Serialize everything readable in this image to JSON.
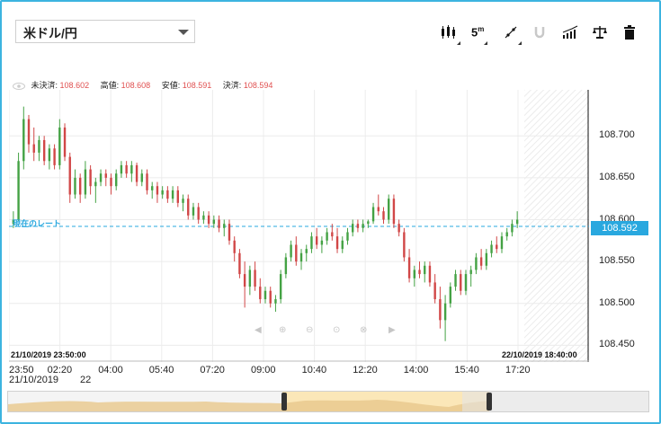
{
  "toolbar": {
    "pair": "米ドル/円",
    "interval": "5",
    "interval_unit": "m"
  },
  "quote": {
    "close_label": "未決済:",
    "close_value": "108.602",
    "high_label": "高値:",
    "high_value": "108.608",
    "low_label": "安値:",
    "low_value": "108.591",
    "last_label": "決済:",
    "last_value": "108.594"
  },
  "current_rate_label": "現在のレート",
  "current_price": "108.592",
  "start_datetime": "21/10/2019 23:50:00",
  "end_datetime": "22/10/2019 18:40:00",
  "y_axis_labels": [
    "108.700",
    "108.650",
    "108.600",
    "108.550",
    "108.500",
    "108.450"
  ],
  "x_axis_labels": [
    "23:50",
    "02:20",
    "04:00",
    "05:40",
    "07:20",
    "09:00",
    "10:40",
    "12:20",
    "14:00",
    "15:40",
    "17:20"
  ],
  "x_axis_dates": [
    "21/10/2019",
    "22"
  ],
  "colors": {
    "up": "#44a244",
    "down": "#d14747",
    "accent": "#29a8df"
  },
  "chart_data": {
    "type": "candlestick",
    "ylim": [
      108.43,
      108.755
    ],
    "candles": [
      [
        108.595,
        108.61,
        108.59,
        108.6
      ],
      [
        108.6,
        108.68,
        108.598,
        108.67
      ],
      [
        108.67,
        108.735,
        108.66,
        108.72
      ],
      [
        108.72,
        108.725,
        108.68,
        108.69
      ],
      [
        108.69,
        108.71,
        108.67,
        108.68
      ],
      [
        108.68,
        108.7,
        108.67,
        108.695
      ],
      [
        108.695,
        108.7,
        108.665,
        108.67
      ],
      [
        108.67,
        108.69,
        108.66,
        108.685
      ],
      [
        108.685,
        108.69,
        108.66,
        108.665
      ],
      [
        108.665,
        108.72,
        108.66,
        108.71
      ],
      [
        108.71,
        108.715,
        108.67,
        108.675
      ],
      [
        108.675,
        108.68,
        108.62,
        108.63
      ],
      [
        108.63,
        108.66,
        108.625,
        108.65
      ],
      [
        108.65,
        108.655,
        108.62,
        108.63
      ],
      [
        108.63,
        108.67,
        108.625,
        108.66
      ],
      [
        108.66,
        108.665,
        108.63,
        108.64
      ],
      [
        108.64,
        108.65,
        108.62,
        108.645
      ],
      [
        108.645,
        108.66,
        108.64,
        108.655
      ],
      [
        108.655,
        108.66,
        108.64,
        108.65
      ],
      [
        108.65,
        108.655,
        108.63,
        108.64
      ],
      [
        108.64,
        108.66,
        108.635,
        108.655
      ],
      [
        108.655,
        108.67,
        108.65,
        108.665
      ],
      [
        108.665,
        108.67,
        108.65,
        108.655
      ],
      [
        108.655,
        108.67,
        108.645,
        108.665
      ],
      [
        108.665,
        108.668,
        108.64,
        108.645
      ],
      [
        108.645,
        108.66,
        108.64,
        108.655
      ],
      [
        108.655,
        108.66,
        108.63,
        108.635
      ],
      [
        108.635,
        108.645,
        108.625,
        108.64
      ],
      [
        108.64,
        108.645,
        108.62,
        108.63
      ],
      [
        108.63,
        108.64,
        108.625,
        108.635
      ],
      [
        108.635,
        108.64,
        108.62,
        108.625
      ],
      [
        108.625,
        108.64,
        108.62,
        108.635
      ],
      [
        108.635,
        108.64,
        108.615,
        108.62
      ],
      [
        108.62,
        108.63,
        108.61,
        108.625
      ],
      [
        108.625,
        108.63,
        108.6,
        108.605
      ],
      [
        108.605,
        108.62,
        108.6,
        108.615
      ],
      [
        108.615,
        108.62,
        108.595,
        108.6
      ],
      [
        108.6,
        108.61,
        108.595,
        108.605
      ],
      [
        108.605,
        108.61,
        108.59,
        108.595
      ],
      [
        108.595,
        108.605,
        108.59,
        108.6
      ],
      [
        108.6,
        108.605,
        108.585,
        108.59
      ],
      [
        108.59,
        108.6,
        108.58,
        108.595
      ],
      [
        108.595,
        108.6,
        108.57,
        108.575
      ],
      [
        108.575,
        108.58,
        108.55,
        108.56
      ],
      [
        108.56,
        108.565,
        108.53,
        108.535
      ],
      [
        108.535,
        108.55,
        108.495,
        108.52
      ],
      [
        108.52,
        108.545,
        108.51,
        108.54
      ],
      [
        108.54,
        108.55,
        108.515,
        108.52
      ],
      [
        108.52,
        108.53,
        108.5,
        108.505
      ],
      [
        108.505,
        108.52,
        108.5,
        108.515
      ],
      [
        108.515,
        108.52,
        108.495,
        108.5
      ],
      [
        108.5,
        108.51,
        108.49,
        108.505
      ],
      [
        108.505,
        108.54,
        108.5,
        108.535
      ],
      [
        108.535,
        108.56,
        108.53,
        108.555
      ],
      [
        108.555,
        108.575,
        108.55,
        108.57
      ],
      [
        108.57,
        108.58,
        108.545,
        108.55
      ],
      [
        108.55,
        108.565,
        108.54,
        108.56
      ],
      [
        108.56,
        108.57,
        108.55,
        108.565
      ],
      [
        108.565,
        108.585,
        108.56,
        108.58
      ],
      [
        108.58,
        108.59,
        108.565,
        108.57
      ],
      [
        108.57,
        108.58,
        108.56,
        108.575
      ],
      [
        108.575,
        108.59,
        108.57,
        108.585
      ],
      [
        108.585,
        108.595,
        108.575,
        108.58
      ],
      [
        108.58,
        108.59,
        108.56,
        108.565
      ],
      [
        108.565,
        108.58,
        108.56,
        108.575
      ],
      [
        108.575,
        108.59,
        108.57,
        108.585
      ],
      [
        108.585,
        108.6,
        108.58,
        108.595
      ],
      [
        108.595,
        108.6,
        108.585,
        108.59
      ],
      [
        108.59,
        108.6,
        108.585,
        108.595
      ],
      [
        108.595,
        108.6,
        108.59,
        108.598
      ],
      [
        108.598,
        108.62,
        108.595,
        108.615
      ],
      [
        108.615,
        108.63,
        108.605,
        108.61
      ],
      [
        108.61,
        108.615,
        108.595,
        108.6
      ],
      [
        108.6,
        108.63,
        108.595,
        108.625
      ],
      [
        108.625,
        108.63,
        108.59,
        108.595
      ],
      [
        108.595,
        108.6,
        108.58,
        108.585
      ],
      [
        108.585,
        108.59,
        108.55,
        108.555
      ],
      [
        108.555,
        108.565,
        108.525,
        108.53
      ],
      [
        108.53,
        108.545,
        108.52,
        108.54
      ],
      [
        108.54,
        108.55,
        108.53,
        108.535
      ],
      [
        108.535,
        108.55,
        108.525,
        108.545
      ],
      [
        108.545,
        108.55,
        108.52,
        108.525
      ],
      [
        108.525,
        108.535,
        108.5,
        108.505
      ],
      [
        108.505,
        108.52,
        108.47,
        108.48
      ],
      [
        108.48,
        108.51,
        108.455,
        108.5
      ],
      [
        108.5,
        108.525,
        108.495,
        108.52
      ],
      [
        108.52,
        108.54,
        108.515,
        108.535
      ],
      [
        108.535,
        108.54,
        108.51,
        108.515
      ],
      [
        108.515,
        108.54,
        108.51,
        108.535
      ],
      [
        108.535,
        108.545,
        108.52,
        108.54
      ],
      [
        108.54,
        108.56,
        108.535,
        108.555
      ],
      [
        108.555,
        108.565,
        108.54,
        108.545
      ],
      [
        108.545,
        108.565,
        108.54,
        108.56
      ],
      [
        108.56,
        108.575,
        108.555,
        108.57
      ],
      [
        108.57,
        108.58,
        108.56,
        108.565
      ],
      [
        108.565,
        108.585,
        108.56,
        108.58
      ],
      [
        108.58,
        108.59,
        108.575,
        108.585
      ],
      [
        108.585,
        108.6,
        108.58,
        108.595
      ],
      [
        108.595,
        108.61,
        108.59,
        108.6
      ]
    ]
  }
}
